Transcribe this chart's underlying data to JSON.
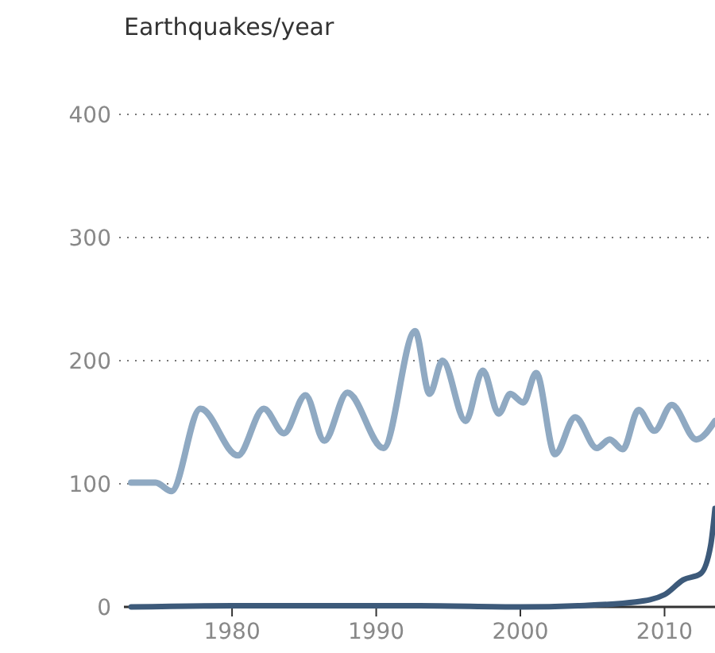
{
  "chart_data": {
    "type": "line",
    "ylabel": "Earthquakes/year",
    "xlim": [
      1972.5,
      2013.5
    ],
    "xticks": [
      1980,
      1990,
      2000,
      2010
    ],
    "ylim": [
      0,
      400
    ],
    "yticks": [
      0,
      100,
      200,
      300,
      400
    ],
    "grid": "y",
    "line_style": "solid",
    "series": [
      {
        "color": "#8fa9c2",
        "x": [
          1973.0,
          1974.7,
          1975.8,
          1977.8,
          1980.4,
          1982.2,
          1983.6,
          1985.1,
          1986.4,
          1988.0,
          1990.5,
          1992.7,
          1993.7,
          1994.6,
          1996.2,
          1997.4,
          1998.5,
          1999.3,
          2000.2,
          2001.1,
          2002.4,
          2003.8,
          2005.3,
          2006.2,
          2007.1,
          2008.2,
          2009.3,
          2010.5,
          2012.2,
          2013.5
        ],
        "values": [
          101,
          101,
          94,
          161,
          123,
          161,
          141,
          172,
          135,
          174,
          129,
          224,
          173,
          200,
          151,
          192,
          157,
          173,
          166,
          190,
          124,
          154,
          129,
          136,
          128,
          160,
          143,
          164,
          136,
          151
        ]
      },
      {
        "color": "#3d5a7a",
        "x": [
          1973,
          1980,
          1993,
          2000,
          2004,
          2008,
          2010,
          2011.3,
          2012.5,
          2013.2,
          2013.5
        ],
        "values": [
          0,
          1,
          1,
          0,
          1,
          4,
          10,
          22,
          27,
          50,
          80
        ]
      }
    ]
  }
}
